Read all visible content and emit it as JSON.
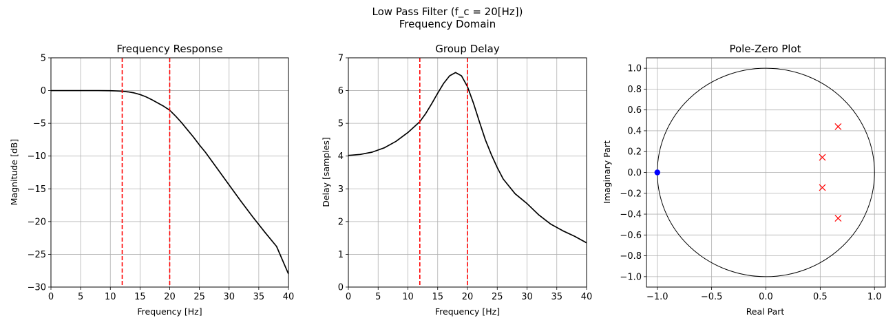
{
  "figure": {
    "suptitle_line1": "Low Pass Filter (f_c = 20[Hz])",
    "suptitle_line2": "Frequency Domain"
  },
  "chart_data": [
    {
      "type": "line",
      "title": "Frequency Response",
      "xlabel": "Frequency [Hz]",
      "ylabel": "Magnitude [dB]",
      "xlim": [
        0,
        40
      ],
      "ylim": [
        -30,
        5
      ],
      "xticks": [
        0,
        5,
        10,
        15,
        20,
        25,
        30,
        35,
        40
      ],
      "yticks": [
        -30,
        -25,
        -20,
        -15,
        -10,
        -5,
        0,
        5
      ],
      "grid": true,
      "vlines": [
        12,
        20
      ],
      "line_color": "#000000",
      "vline_color": "#ff0000",
      "series": [
        {
          "x": [
            0,
            2,
            4,
            6,
            8,
            10,
            11,
            12,
            13,
            14,
            15,
            16,
            17,
            18,
            19,
            20,
            21,
            22,
            23,
            24,
            25,
            26,
            28,
            30,
            32,
            34,
            36,
            38,
            40
          ],
          "y": [
            0,
            0,
            0,
            0,
            0,
            -0.02,
            -0.05,
            -0.1,
            -0.2,
            -0.35,
            -0.6,
            -0.95,
            -1.4,
            -1.9,
            -2.4,
            -3.0,
            -3.9,
            -4.9,
            -6.0,
            -7.1,
            -8.3,
            -9.4,
            -11.9,
            -14.4,
            -16.9,
            -19.3,
            -21.6,
            -23.8,
            -28.0
          ]
        }
      ]
    },
    {
      "type": "line",
      "title": "Group Delay",
      "xlabel": "Frequency [Hz]",
      "ylabel": "Delay [samples]",
      "xlim": [
        0,
        40
      ],
      "ylim": [
        0,
        7
      ],
      "xticks": [
        0,
        5,
        10,
        15,
        20,
        25,
        30,
        35,
        40
      ],
      "yticks": [
        0,
        1,
        2,
        3,
        4,
        5,
        6,
        7
      ],
      "grid": true,
      "vlines": [
        12,
        20
      ],
      "line_color": "#000000",
      "vline_color": "#ff0000",
      "series": [
        {
          "x": [
            0,
            2,
            4,
            6,
            8,
            10,
            12,
            13,
            14,
            15,
            16,
            17,
            18,
            19,
            20,
            21,
            22,
            23,
            24,
            25,
            26,
            28,
            30,
            32,
            34,
            36,
            38,
            40
          ],
          "y": [
            4.02,
            4.05,
            4.12,
            4.25,
            4.45,
            4.72,
            5.05,
            5.3,
            5.6,
            5.92,
            6.22,
            6.45,
            6.55,
            6.45,
            6.12,
            5.62,
            5.05,
            4.5,
            4.05,
            3.65,
            3.3,
            2.85,
            2.55,
            2.2,
            1.92,
            1.72,
            1.55,
            1.35
          ]
        }
      ]
    },
    {
      "type": "scatter",
      "title": "Pole-Zero Plot",
      "xlabel": "Real Part",
      "ylabel": "Imaginary Part",
      "xlim": [
        -1.1,
        1.1
      ],
      "ylim": [
        -1.1,
        1.1
      ],
      "xticks": [
        -1.0,
        -0.5,
        0.0,
        0.5,
        1.0
      ],
      "yticks": [
        -1.0,
        -0.8,
        -0.6,
        -0.4,
        -0.2,
        0.0,
        0.2,
        0.4,
        0.6,
        0.8,
        1.0
      ],
      "xtick_labels": [
        "−1.0",
        "−0.5",
        "0.0",
        "0.5",
        "1.0"
      ],
      "ytick_labels": [
        "−1.0",
        "−0.8",
        "−0.6",
        "−0.4",
        "−0.2",
        "0.0",
        "0.2",
        "0.4",
        "0.6",
        "0.8",
        "1.0"
      ],
      "grid": true,
      "unit_circle": true,
      "zero_color": "#0000ff",
      "pole_color": "#ff0000",
      "zeros": [
        {
          "re": -1.0,
          "im": 0.0
        }
      ],
      "poles": [
        {
          "re": 0.665,
          "im": 0.44
        },
        {
          "re": 0.52,
          "im": 0.145
        },
        {
          "re": 0.52,
          "im": -0.145
        },
        {
          "re": 0.665,
          "im": -0.44
        }
      ]
    }
  ]
}
